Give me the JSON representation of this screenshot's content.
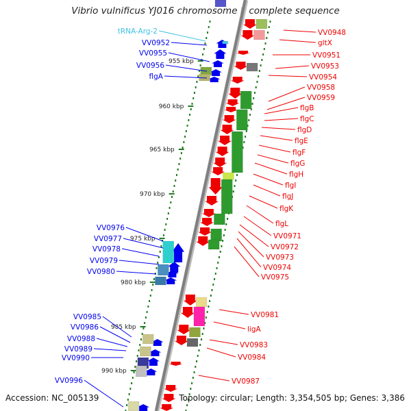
{
  "title": "Vibrio vulnificus YJ016 chromosome I, complete sequence",
  "accession": "Accession: NC_005139",
  "topology": "Topology: circular; Length: 3,354,505 bp; Genes: 3,386",
  "colors": {
    "backbone_dark": "#7f7f7f",
    "forward_strand": "#0000ee",
    "reverse_strand": "#ee0000",
    "trna": "#3ec2e3",
    "tick_dots": "#1e7b1e",
    "cog_green": "#2f9b2f",
    "cog_cyan": "#2fcfcf",
    "cog_magenta": "#ff22aa"
  },
  "kbp_ticks": [
    "955 kbp",
    "960 kbp",
    "965 kbp",
    "970 kbp",
    "975 kbp",
    "980 kbp",
    "985 kbp",
    "990 kbp"
  ],
  "left_labels": [
    {
      "text": "tRNA-Arg-2",
      "type": "trna"
    },
    {
      "text": "VV0952",
      "type": "gene"
    },
    {
      "text": "VV0955",
      "type": "gene"
    },
    {
      "text": "VV0956",
      "type": "gene"
    },
    {
      "text": "flgA",
      "type": "gene"
    },
    {
      "text": "VV0976",
      "type": "gene"
    },
    {
      "text": "VV0977",
      "type": "gene"
    },
    {
      "text": "VV0978",
      "type": "gene"
    },
    {
      "text": "VV0979",
      "type": "gene"
    },
    {
      "text": "VV0980",
      "type": "gene"
    },
    {
      "text": "VV0985",
      "type": "gene"
    },
    {
      "text": "VV0986",
      "type": "gene"
    },
    {
      "text": "VV0988",
      "type": "gene"
    },
    {
      "text": "VV0989",
      "type": "gene"
    },
    {
      "text": "VV0990",
      "type": "gene"
    },
    {
      "text": "VV0996",
      "type": "gene"
    }
  ],
  "right_labels": [
    "VV0948",
    "gltX",
    "VV0951",
    "VV0953",
    "VV0954",
    "VV0958",
    "VV0959",
    "flgB",
    "flgC",
    "flgD",
    "flgE",
    "flgF",
    "flgG",
    "flgH",
    "flgI",
    "flgJ",
    "flgK",
    "flgL",
    "VV0971",
    "VV0972",
    "VV0973",
    "VV0974",
    "VV0975",
    "VV0981",
    "ligA",
    "VV0983",
    "VV0984",
    "VV0987"
  ]
}
